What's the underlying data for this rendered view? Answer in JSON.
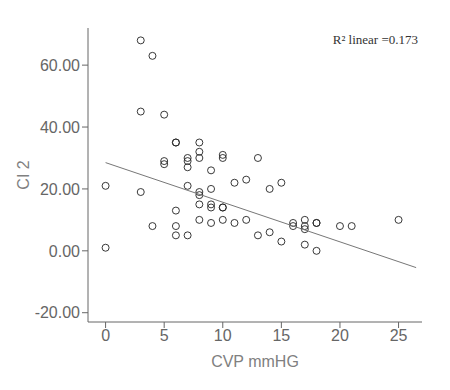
{
  "chart_data": {
    "type": "scatter",
    "xlabel": "CVP mmHG",
    "ylabel": "CI 2",
    "annotations": [
      "R² linear =0.173"
    ],
    "xlim": [
      -1.5,
      27
    ],
    "ylim": [
      -23,
      72
    ],
    "xticks": [
      0,
      5,
      10,
      15,
      20,
      25
    ],
    "yticks": [
      {
        "value": -20,
        "label": "-20.00"
      },
      {
        "value": 0,
        "label": "0.00"
      },
      {
        "value": 20,
        "label": "20.00"
      },
      {
        "value": 40,
        "label": "40.00"
      },
      {
        "value": 60,
        "label": "60.00"
      }
    ],
    "grid": false,
    "series": [
      {
        "type": "scatter",
        "marker": "open_circle",
        "color": "#222222",
        "x": [
          0,
          0,
          3,
          3,
          3,
          4,
          4,
          5,
          5,
          5,
          6,
          6,
          6,
          6,
          6,
          7,
          7,
          7,
          7,
          7,
          8,
          8,
          8,
          8,
          8,
          8,
          8,
          9,
          9,
          9,
          9,
          9,
          10,
          10,
          10,
          10,
          10,
          11,
          11,
          12,
          12,
          13,
          13,
          14,
          14,
          15,
          15,
          16,
          16,
          17,
          17,
          17,
          17,
          18,
          18,
          18,
          20,
          21,
          25
        ],
        "values": [
          1,
          21,
          68,
          45,
          19,
          63,
          8,
          44,
          28,
          29,
          35,
          35,
          13,
          8,
          5,
          30,
          29,
          27,
          21,
          5,
          35,
          32,
          30,
          19,
          18,
          15,
          10,
          26,
          20,
          15,
          14,
          9,
          31,
          30,
          14,
          14,
          10,
          22,
          9,
          23,
          10,
          30,
          5,
          20,
          6,
          22,
          3,
          9,
          8,
          10,
          8,
          7,
          2,
          9,
          9,
          0,
          8,
          8,
          10
        ]
      },
      {
        "type": "line",
        "color": "#777777",
        "x": [
          0,
          26.5
        ],
        "values": [
          28.5,
          -5.42
        ]
      }
    ]
  }
}
